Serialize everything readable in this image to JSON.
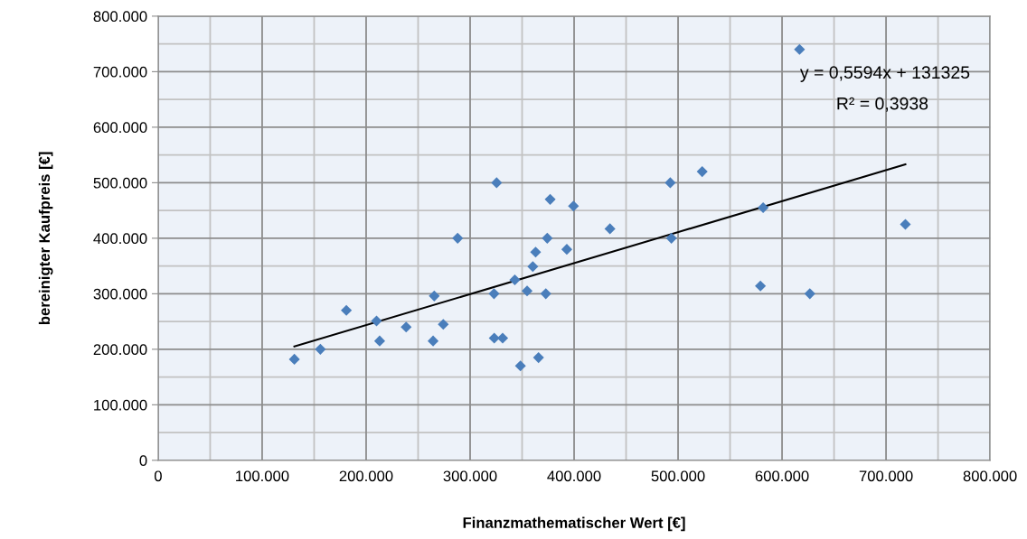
{
  "chart_data": {
    "type": "scatter",
    "xlabel": "Finanzmathematischer Wert [€]",
    "ylabel": "bereinigter Kaufpreis [€]",
    "annotations": [
      "y = 0,5594x + 131325",
      "R² = 0,3938"
    ],
    "series": [
      {
        "color": "#4a7ebb",
        "marker": "diamond",
        "x": [
          131000,
          156000,
          181000,
          210000,
          238500,
          213000,
          325500,
          377000,
          399400,
          434500,
          288000,
          374200,
          363000,
          393000,
          360300,
          343000,
          265500,
          323000,
          354800,
          372800,
          274200,
          264400,
          323200,
          331300,
          365800,
          348400,
          616800,
          492500,
          523200,
          581800,
          493600,
          718600,
          579200,
          626700
        ],
        "values": [
          182000,
          200000,
          270000,
          251000,
          240000,
          215000,
          500000,
          470000,
          458000,
          417000,
          400000,
          400000,
          375000,
          380000,
          349000,
          325000,
          296000,
          300000,
          305000,
          300000,
          245000,
          215000,
          220000,
          220000,
          185000,
          170000,
          740000,
          500000,
          520000,
          455000,
          400000,
          425000,
          314000,
          300000
        ]
      },
      {
        "type": "line",
        "color": "#000000",
        "marker": "none",
        "line_style": "solid",
        "x": [
          131000,
          718600
        ],
        "values": [
          205000,
          533000
        ]
      }
    ],
    "xlim": [
      0,
      800000
    ],
    "ylim": [
      0,
      800000
    ],
    "xticks": [
      0,
      {
        "value": 100000,
        "label": "100.000"
      },
      {
        "value": 200000,
        "label": "200.000"
      },
      {
        "value": 300000,
        "label": "300.000"
      },
      {
        "value": 400000,
        "label": "400.000"
      },
      {
        "value": 500000,
        "label": "500.000"
      },
      {
        "value": 600000,
        "label": "600.000"
      },
      {
        "value": 700000,
        "label": "700.000"
      },
      {
        "value": 800000,
        "label": "800.000"
      }
    ],
    "yticks": [
      0,
      {
        "value": 100000,
        "label": "100.000"
      },
      {
        "value": 200000,
        "label": "200.000"
      },
      {
        "value": 300000,
        "label": "300.000"
      },
      {
        "value": 400000,
        "label": "400.000"
      },
      {
        "value": 500000,
        "label": "500.000"
      },
      {
        "value": 600000,
        "label": "600.000"
      },
      {
        "value": 700000,
        "label": "700.000"
      },
      {
        "value": 800000,
        "label": "800.000"
      }
    ],
    "grid": true,
    "legend": false
  }
}
